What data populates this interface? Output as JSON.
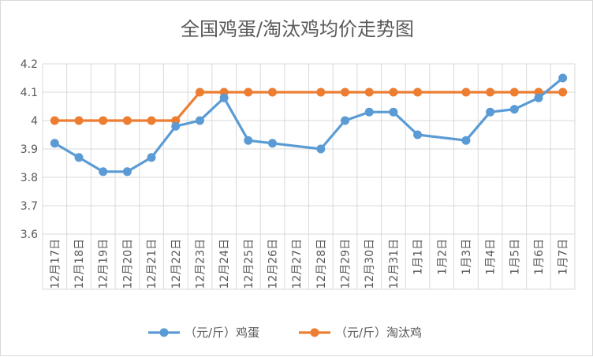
{
  "chart_data": {
    "type": "line",
    "title": "全国鸡蛋/淘汰鸡均价走势图",
    "categories": [
      "12月17日",
      "12月18日",
      "12月19日",
      "12月20日",
      "12月21日",
      "12月22日",
      "12月23日",
      "12月24日",
      "12月25日",
      "12月26日",
      "12月27日",
      "12月28日",
      "12月29日",
      "12月30日",
      "12月31日",
      "1月1日",
      "1月2日",
      "1月3日",
      "1月4日",
      "1月5日",
      "1月6日",
      "1月7日"
    ],
    "ylim": [
      3.6,
      4.2
    ],
    "yticks": [
      3.6,
      3.7,
      3.8,
      3.9,
      4,
      4.1,
      4.2
    ],
    "ytick_labels": [
      "3.6",
      "3.7",
      "3.8",
      "3.9",
      "4",
      "4.1",
      "4.2"
    ],
    "grid": true,
    "legend_position": "bottom",
    "series": [
      {
        "name": "（元/斤）鸡蛋",
        "color": "#5b9bd5",
        "values": [
          3.92,
          3.87,
          3.82,
          3.82,
          3.87,
          3.98,
          4.0,
          4.08,
          3.93,
          3.92,
          null,
          3.9,
          4.0,
          4.03,
          4.03,
          3.95,
          null,
          3.93,
          4.03,
          4.04,
          4.08,
          4.15
        ]
      },
      {
        "name": "（元/斤）淘汰鸡",
        "color": "#ed7d31",
        "values": [
          4.0,
          4.0,
          4.0,
          4.0,
          4.0,
          4.0,
          4.1,
          4.1,
          4.1,
          4.1,
          null,
          4.1,
          4.1,
          4.1,
          4.1,
          4.1,
          null,
          4.1,
          4.1,
          4.1,
          4.1,
          4.1
        ]
      }
    ]
  }
}
